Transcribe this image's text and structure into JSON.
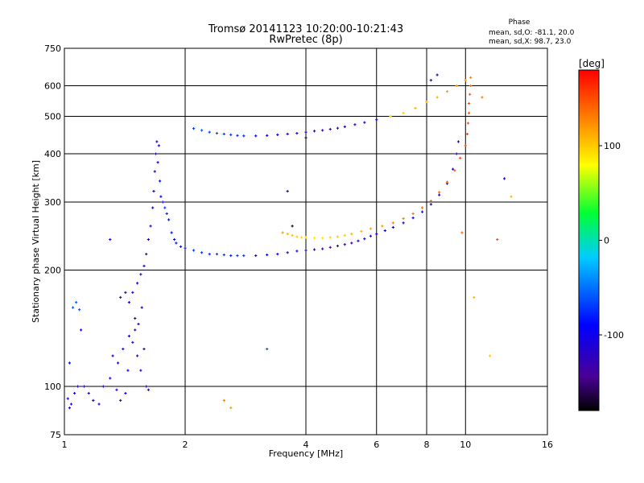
{
  "chart_data": {
    "type": "scatter",
    "title": "Tromsø 20141123 10:20:00-10:21:43",
    "subtitle": "RwPretec (8p)",
    "xlabel": "Frequency [MHz]",
    "ylabel": "Stationary phase Virtual Height [km]",
    "x_scale": "log",
    "y_scale": "log",
    "xlim": [
      1,
      16
    ],
    "ylim": [
      75,
      750
    ],
    "x_ticks": [
      1,
      2,
      4,
      6,
      8,
      10,
      16
    ],
    "x_tick_labels": [
      "1",
      "2",
      "4",
      "6",
      "8",
      "10",
      "16"
    ],
    "y_ticks": [
      75,
      100,
      200,
      300,
      400,
      500,
      600,
      750
    ],
    "y_tick_labels": [
      "75",
      "100",
      "200",
      "300",
      "400",
      "500",
      "600",
      "750"
    ],
    "grid": true,
    "phase_stats": {
      "heading": "Phase",
      "line_o": "mean, sd,O: -81.1, 20.0",
      "line_x": "mean, sd,X:  98.7, 23.0"
    },
    "colorbar": {
      "label": "[deg]",
      "range": [
        -180,
        180
      ],
      "ticks": [
        100,
        0,
        -100
      ],
      "tick_labels": [
        "100",
        "0",
        "-100"
      ]
    },
    "series": [
      {
        "points": [
          [
            1.02,
            93,
            -110
          ],
          [
            1.04,
            90,
            -115
          ],
          [
            1.06,
            96,
            -100
          ],
          [
            1.03,
            88,
            -95
          ],
          [
            1.08,
            100,
            -105
          ],
          [
            1.05,
            160,
            -60
          ],
          [
            1.07,
            165,
            -55
          ],
          [
            1.09,
            158,
            -60
          ],
          [
            1.1,
            140,
            -100
          ],
          [
            1.03,
            115,
            -90
          ],
          [
            1.12,
            100,
            -110
          ],
          [
            1.15,
            96,
            -120
          ],
          [
            1.18,
            92,
            -100
          ],
          [
            1.22,
            90,
            -110
          ],
          [
            1.25,
            100,
            -100
          ],
          [
            1.3,
            105,
            -110
          ],
          [
            1.35,
            98,
            -120
          ],
          [
            1.38,
            92,
            -105
          ],
          [
            1.42,
            96,
            -100
          ],
          [
            1.32,
            120,
            -100
          ],
          [
            1.36,
            115,
            -110
          ],
          [
            1.4,
            125,
            -120
          ],
          [
            1.44,
            110,
            -100
          ],
          [
            1.48,
            130,
            -110
          ],
          [
            1.5,
            140,
            -120
          ],
          [
            1.52,
            120,
            -130
          ],
          [
            1.55,
            110,
            -115
          ],
          [
            1.58,
            125,
            -120
          ],
          [
            1.45,
            135,
            -100
          ],
          [
            1.5,
            150,
            -110
          ],
          [
            1.53,
            145,
            -120
          ],
          [
            1.56,
            160,
            -115
          ],
          [
            1.6,
            100,
            -110
          ],
          [
            1.62,
            98,
            -125
          ],
          [
            1.38,
            170,
            -120
          ],
          [
            1.42,
            175,
            -115
          ],
          [
            1.45,
            165,
            -110
          ],
          [
            1.48,
            175,
            -120
          ],
          [
            1.52,
            185,
            -115
          ],
          [
            1.55,
            195,
            -120
          ],
          [
            1.58,
            205,
            -110
          ],
          [
            1.6,
            220,
            -115
          ],
          [
            1.62,
            240,
            -120
          ],
          [
            1.64,
            260,
            -115
          ],
          [
            1.66,
            290,
            -110
          ],
          [
            1.67,
            320,
            -100
          ],
          [
            1.68,
            360,
            -105
          ],
          [
            1.69,
            400,
            -110
          ],
          [
            1.7,
            430,
            -110
          ],
          [
            1.72,
            420,
            -100
          ],
          [
            1.71,
            380,
            -100
          ],
          [
            1.73,
            340,
            -90
          ],
          [
            1.74,
            310,
            -95
          ],
          [
            1.76,
            300,
            -80
          ],
          [
            1.78,
            290,
            -70
          ],
          [
            1.8,
            280,
            -80
          ],
          [
            1.82,
            270,
            -85
          ],
          [
            1.85,
            250,
            -90
          ],
          [
            1.88,
            240,
            -90
          ],
          [
            1.9,
            235,
            -85
          ],
          [
            1.95,
            230,
            -80
          ],
          [
            2.0,
            228,
            -75
          ],
          [
            2.1,
            225,
            -70
          ],
          [
            2.2,
            222,
            -70
          ],
          [
            2.3,
            220,
            -75
          ],
          [
            2.4,
            220,
            -70
          ],
          [
            2.5,
            219,
            -70
          ],
          [
            2.6,
            218,
            -80
          ],
          [
            2.7,
            218,
            -70
          ],
          [
            2.8,
            218,
            -70
          ],
          [
            3.0,
            218,
            -90
          ],
          [
            3.2,
            219,
            -95
          ],
          [
            3.4,
            220,
            -100
          ],
          [
            3.6,
            222,
            -110
          ],
          [
            3.8,
            224,
            -120
          ],
          [
            4.0,
            225,
            -130
          ],
          [
            4.2,
            226,
            -130
          ],
          [
            4.4,
            227,
            -140
          ],
          [
            4.6,
            229,
            -140
          ],
          [
            4.8,
            231,
            -135
          ],
          [
            5.0,
            233,
            -130
          ],
          [
            5.2,
            235,
            -120
          ],
          [
            5.4,
            238,
            -115
          ],
          [
            5.6,
            241,
            -110
          ],
          [
            5.8,
            245,
            -110
          ],
          [
            6.0,
            248,
            -100
          ],
          [
            6.3,
            253,
            -100
          ],
          [
            6.6,
            258,
            -100
          ],
          [
            7.0,
            265,
            -110
          ],
          [
            7.4,
            273,
            -100
          ],
          [
            7.8,
            283,
            -110
          ],
          [
            8.2,
            296,
            -100
          ],
          [
            8.6,
            313,
            -100
          ],
          [
            9.0,
            335,
            -110
          ],
          [
            9.3,
            365,
            -100
          ],
          [
            9.5,
            400,
            -110
          ],
          [
            9.6,
            430,
            -100
          ],
          [
            2.1,
            465,
            -70
          ],
          [
            2.2,
            460,
            -60
          ],
          [
            2.3,
            455,
            -70
          ],
          [
            2.4,
            452,
            -65
          ],
          [
            2.5,
            450,
            -70
          ],
          [
            2.6,
            448,
            -70
          ],
          [
            2.7,
            446,
            -75
          ],
          [
            2.8,
            445,
            -80
          ],
          [
            3.0,
            445,
            -90
          ],
          [
            3.2,
            446,
            -95
          ],
          [
            3.4,
            448,
            -100
          ],
          [
            3.6,
            450,
            -110
          ],
          [
            3.8,
            452,
            -110
          ],
          [
            4.0,
            455,
            -115
          ],
          [
            4.2,
            458,
            -120
          ],
          [
            4.4,
            460,
            -130
          ],
          [
            4.6,
            463,
            -130
          ],
          [
            4.8,
            466,
            -125
          ],
          [
            5.0,
            470,
            -115
          ],
          [
            5.3,
            476,
            -110
          ],
          [
            5.6,
            482,
            -115
          ],
          [
            6.0,
            490,
            -120
          ],
          [
            6.5,
            500,
            -120
          ],
          [
            8.2,
            620,
            -100
          ],
          [
            8.5,
            640,
            -110
          ],
          [
            1.3,
            240,
            -100
          ],
          [
            3.6,
            320,
            -100
          ],
          [
            12.5,
            345,
            -110
          ],
          [
            3.2,
            125,
            -60
          ]
        ]
      },
      {
        "points": [
          [
            3.5,
            250,
            120
          ],
          [
            3.6,
            248,
            110
          ],
          [
            3.7,
            246,
            105
          ],
          [
            3.8,
            244,
            100
          ],
          [
            3.9,
            243,
            95
          ],
          [
            4.0,
            243,
            95
          ],
          [
            4.2,
            242,
            90
          ],
          [
            4.4,
            242,
            90
          ],
          [
            4.6,
            243,
            95
          ],
          [
            4.8,
            244,
            100
          ],
          [
            5.0,
            246,
            100
          ],
          [
            5.2,
            248,
            110
          ],
          [
            5.5,
            252,
            110
          ],
          [
            5.8,
            256,
            115
          ],
          [
            6.2,
            260,
            120
          ],
          [
            6.6,
            265,
            130
          ],
          [
            7.0,
            272,
            130
          ],
          [
            7.4,
            280,
            135
          ],
          [
            7.8,
            290,
            140
          ],
          [
            8.2,
            302,
            140
          ],
          [
            8.6,
            318,
            140
          ],
          [
            9.0,
            338,
            145
          ],
          [
            9.4,
            362,
            145
          ],
          [
            9.7,
            390,
            150
          ],
          [
            10.0,
            420,
            150
          ],
          [
            10.1,
            450,
            155
          ],
          [
            10.15,
            480,
            150
          ],
          [
            10.2,
            510,
            145
          ],
          [
            10.2,
            540,
            150
          ],
          [
            10.25,
            570,
            145
          ],
          [
            10.3,
            600,
            140
          ],
          [
            10.3,
            630,
            130
          ],
          [
            9.8,
            250,
            140
          ],
          [
            6.5,
            500,
            90
          ],
          [
            7.0,
            510,
            100
          ],
          [
            7.5,
            525,
            110
          ],
          [
            8.0,
            545,
            115
          ],
          [
            8.5,
            560,
            110
          ],
          [
            9.0,
            580,
            120
          ],
          [
            9.5,
            600,
            125
          ],
          [
            10.0,
            620,
            120
          ],
          [
            11.0,
            560,
            130
          ],
          [
            12.0,
            240,
            150
          ],
          [
            13.0,
            310,
            110
          ],
          [
            11.5,
            120,
            100
          ],
          [
            10.5,
            170,
            110
          ],
          [
            2.5,
            92,
            130
          ],
          [
            2.6,
            88,
            120
          ],
          [
            3.7,
            260,
            -170
          ],
          [
            4.0,
            440,
            -170
          ]
        ]
      }
    ]
  }
}
